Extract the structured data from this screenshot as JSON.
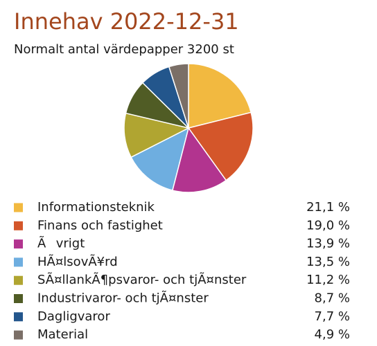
{
  "chart_data": {
    "type": "pie",
    "title": "Innehav 2022-12-31",
    "subtitle": "Normalt antal värdepapper 3200 st",
    "categories": [
      "Informationsteknik",
      "Finans och fastighet",
      "Ãvrigt",
      "HÃ¤lsovÃ¥rd",
      "SÃ¤llankÃ¶psvaror- och tjÃ¤nster",
      "Industrivaror- och tjÃ¤nster",
      "Dagligvaror",
      "Material"
    ],
    "values": [
      21.1,
      19.0,
      13.9,
      13.5,
      11.2,
      8.7,
      7.7,
      4.9
    ],
    "value_labels": [
      "21,1 %",
      "19,0 %",
      "13,9 %",
      "13,5 %",
      "11,2 %",
      "8,7 %",
      "7,7 %",
      "4,9 %"
    ],
    "colors": [
      "#f2b940",
      "#d4562a",
      "#b2348f",
      "#6eaee0",
      "#b0a531",
      "#505c25",
      "#23568c",
      "#7b6f67"
    ]
  }
}
